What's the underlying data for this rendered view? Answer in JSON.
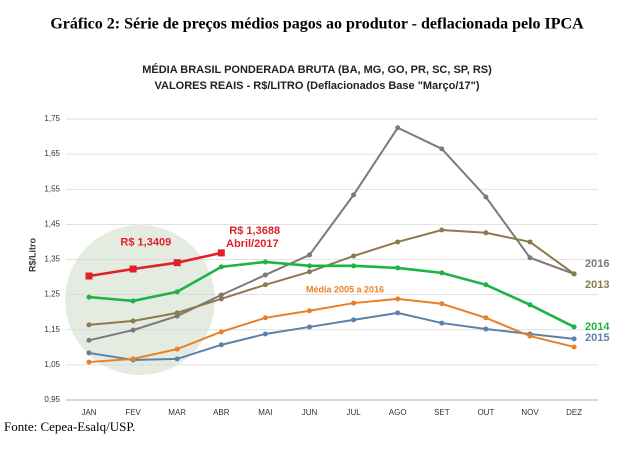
{
  "header": "Gráfico 2: Série de preços médios pagos ao produtor - deflacionada pelo IPCA",
  "source": "Fonte: Cepea-Esalq/USP.",
  "chart_data": {
    "type": "line",
    "title": "MÉDIA BRASIL PONDERADA BRUTA (BA, MG, GO, PR, SC, SP, RS)",
    "subtitle": "VALORES REAIS - R$/LITRO (Deflacionados Base \"Março/17\")",
    "y_label": "R$/Litro",
    "categories": [
      "JAN",
      "FEV",
      "MAR",
      "ABR",
      "MAI",
      "JUN",
      "JUL",
      "AGO",
      "SET",
      "OUT",
      "NOV",
      "DEZ"
    ],
    "ylim": [
      0.95,
      1.75
    ],
    "yticks": [
      {
        "value": 0.95,
        "label": "0,95"
      },
      {
        "value": 1.05,
        "label": "1,05"
      },
      {
        "value": 1.15,
        "label": "1,15"
      },
      {
        "value": 1.25,
        "label": "1,25"
      },
      {
        "value": 1.35,
        "label": "1,35"
      },
      {
        "value": 1.45,
        "label": "1,45"
      },
      {
        "value": 1.55,
        "label": "1,55"
      },
      {
        "value": 1.65,
        "label": "1,65"
      },
      {
        "value": 1.75,
        "label": "1,75"
      }
    ],
    "grid": true,
    "series": [
      {
        "name": "2016",
        "color": "#7a7a7a",
        "values": [
          1.12,
          1.149,
          1.189,
          1.249,
          1.306,
          1.363,
          1.534,
          1.725,
          1.665,
          1.528,
          1.355,
          1.309
        ]
      },
      {
        "name": "2013",
        "color": "#8c7a4a",
        "values": [
          1.164,
          1.175,
          1.198,
          1.238,
          1.278,
          1.315,
          1.36,
          1.4,
          1.434,
          1.426,
          1.4,
          1.309
        ]
      },
      {
        "name": "2014",
        "color": "#1db445",
        "values": [
          1.243,
          1.232,
          1.258,
          1.329,
          1.343,
          1.332,
          1.332,
          1.326,
          1.312,
          1.278,
          1.221,
          1.158
        ]
      },
      {
        "name": "2015",
        "color": "#5b82aa",
        "values": [
          1.084,
          1.064,
          1.067,
          1.107,
          1.138,
          1.158,
          1.178,
          1.198,
          1.169,
          1.152,
          1.138,
          1.124
        ]
      },
      {
        "name": "Média 2005 a 2016",
        "color": "#e8802a",
        "values": [
          1.058,
          1.067,
          1.095,
          1.144,
          1.184,
          1.204,
          1.226,
          1.238,
          1.224,
          1.184,
          1.132,
          1.101
        ]
      },
      {
        "color": "#e0202a",
        "values": [
          1.303,
          1.323,
          1.3409,
          1.3688,
          null,
          null,
          null,
          null,
          null,
          null,
          null,
          null
        ],
        "value_labels": [
          null,
          null,
          "R$ 1,3409",
          "R$ 1,3688"
        ]
      }
    ],
    "annotations": [
      "Abril/2017"
    ]
  }
}
